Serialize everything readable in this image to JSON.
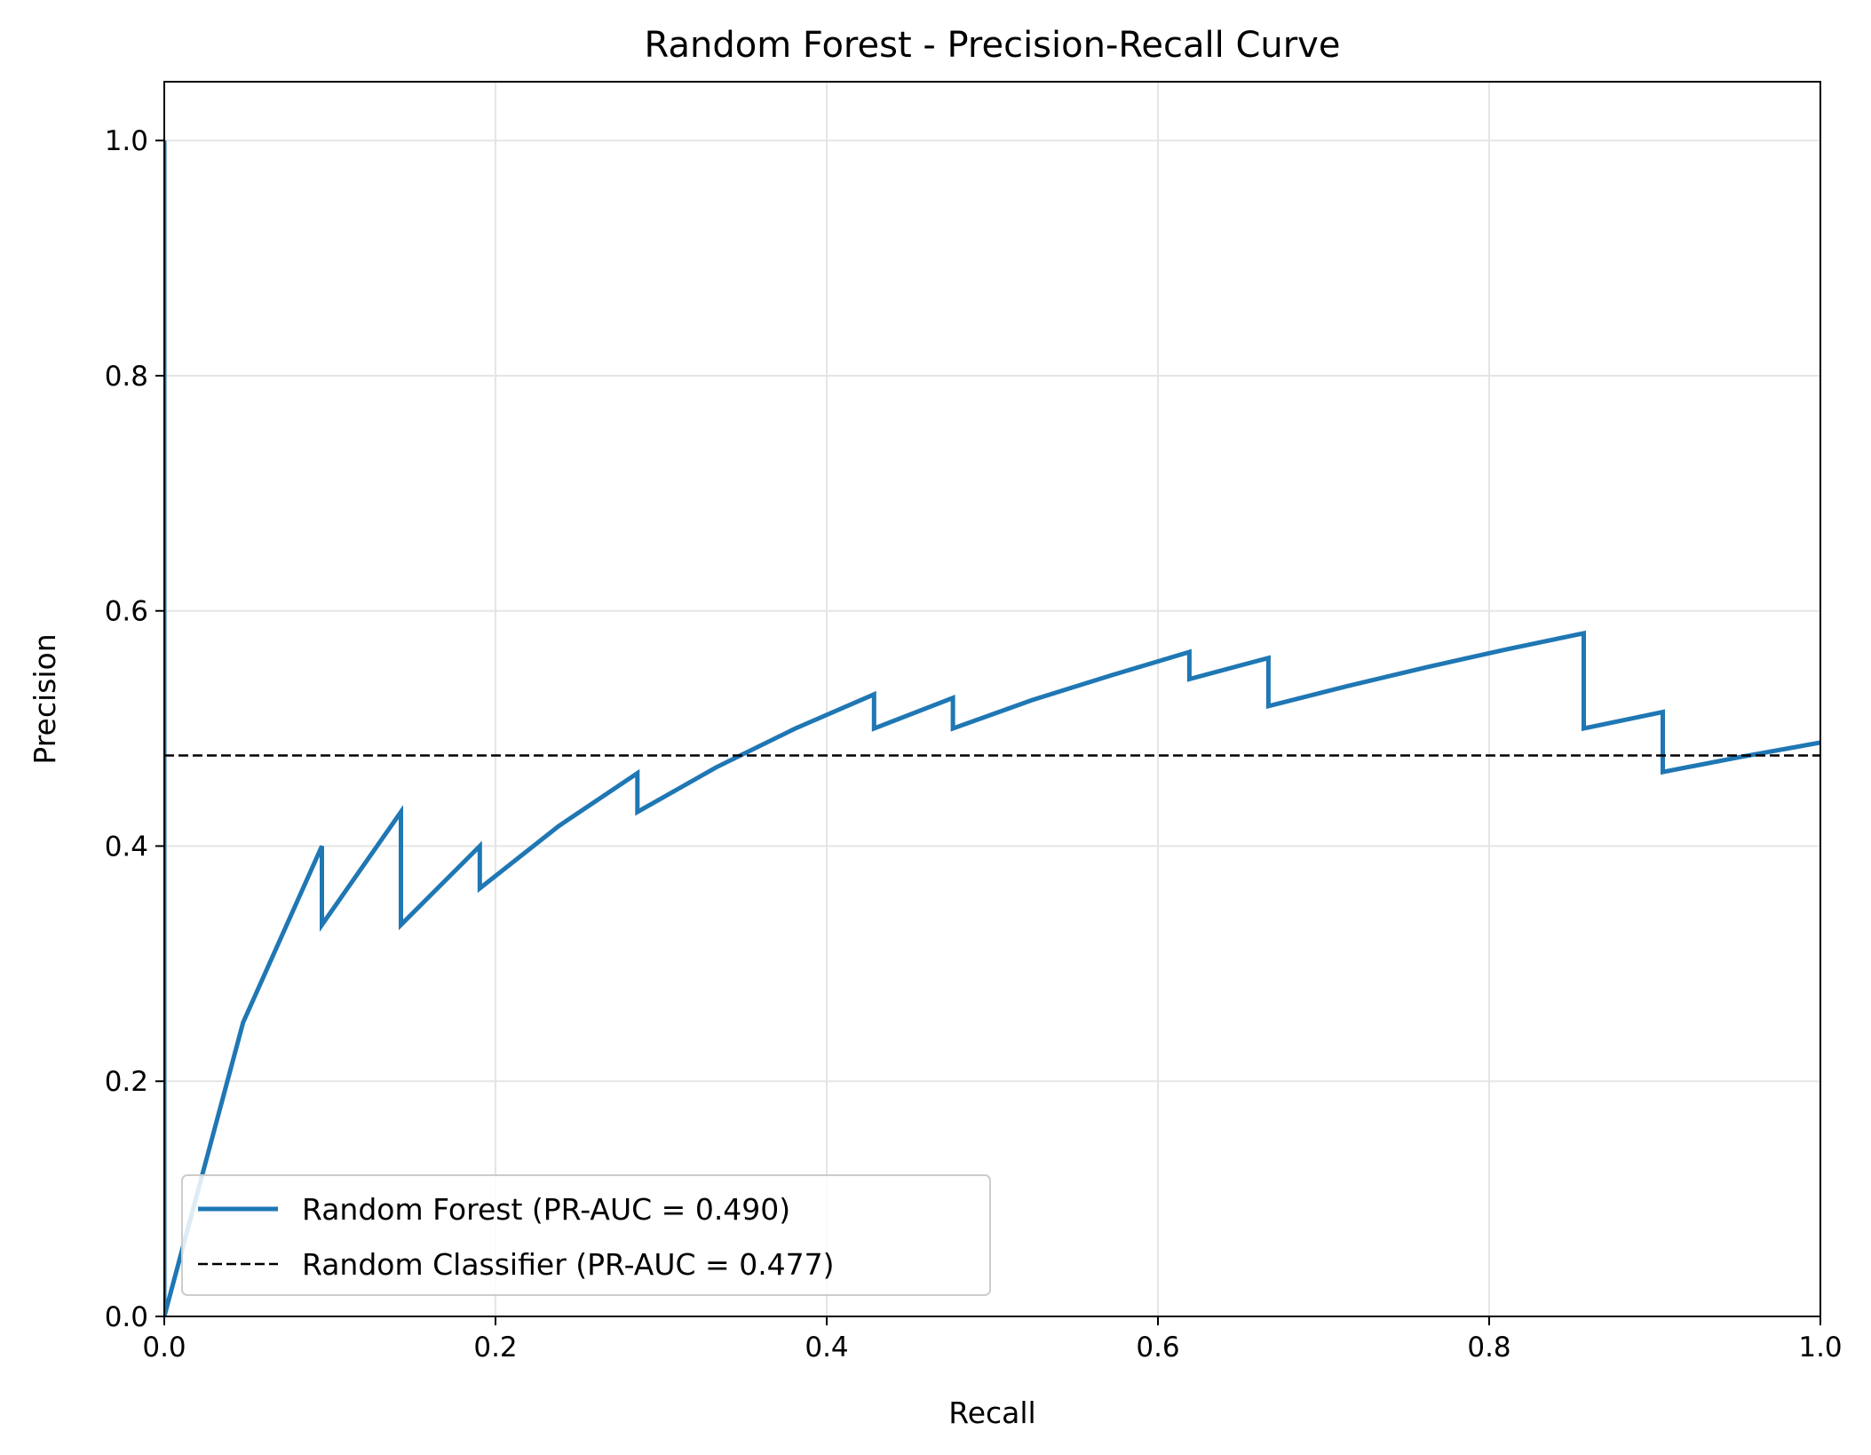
{
  "chart_data": {
    "type": "line",
    "title": "Random Forest - Precision-Recall Curve",
    "xlabel": "Recall",
    "ylabel": "Precision",
    "xlim": [
      0.0,
      1.0
    ],
    "ylim": [
      0.0,
      1.05
    ],
    "grid": true,
    "legend_position": "lower-left",
    "xticks": [
      "0.0",
      "0.2",
      "0.4",
      "0.6",
      "0.8",
      "1.0"
    ],
    "yticks": [
      "0.0",
      "0.2",
      "0.4",
      "0.6",
      "0.8",
      "1.0"
    ],
    "colors": {
      "series": "#1f77b4",
      "baseline": "#000000",
      "grid": "#e5e5e5"
    },
    "series": [
      {
        "name": "Random Forest (PR-AUC = 0.490)",
        "style": "solid",
        "x": [
          0.0,
          0.0,
          0.0476,
          0.0952,
          0.0952,
          0.1429,
          0.1429,
          0.1905,
          0.1905,
          0.2381,
          0.2857,
          0.2857,
          0.3333,
          0.381,
          0.4286,
          0.4286,
          0.4762,
          0.4762,
          0.5238,
          0.5714,
          0.619,
          0.619,
          0.6667,
          0.6667,
          0.7143,
          0.7619,
          0.8095,
          0.8571,
          0.8571,
          0.9048,
          0.9048,
          0.9524,
          1.0
        ],
        "y": [
          1.0,
          0.0,
          0.25,
          0.4,
          0.333,
          0.429,
          0.333,
          0.4,
          0.364,
          0.417,
          0.462,
          0.429,
          0.467,
          0.5,
          0.529,
          0.5,
          0.526,
          0.5,
          0.524,
          0.545,
          0.565,
          0.542,
          0.56,
          0.519,
          0.536,
          0.552,
          0.567,
          0.581,
          0.5,
          0.514,
          0.463,
          0.476,
          0.488
        ]
      },
      {
        "name": "Random Classifier (PR-AUC = 0.477)",
        "style": "dashed",
        "x": [
          0.0,
          1.0
        ],
        "y": [
          0.477,
          0.477
        ]
      }
    ]
  }
}
